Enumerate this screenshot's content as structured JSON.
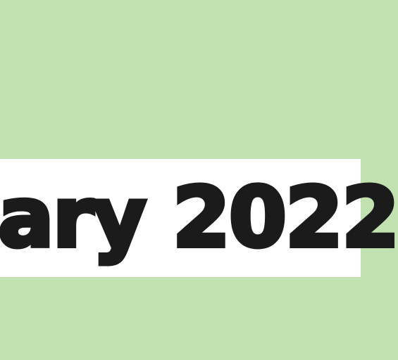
{
  "banner": {
    "visible_text": "ary 2022"
  },
  "colors": {
    "background": "#c2e1b1",
    "banner": "#ffffff",
    "text": "#1b1b1b"
  }
}
